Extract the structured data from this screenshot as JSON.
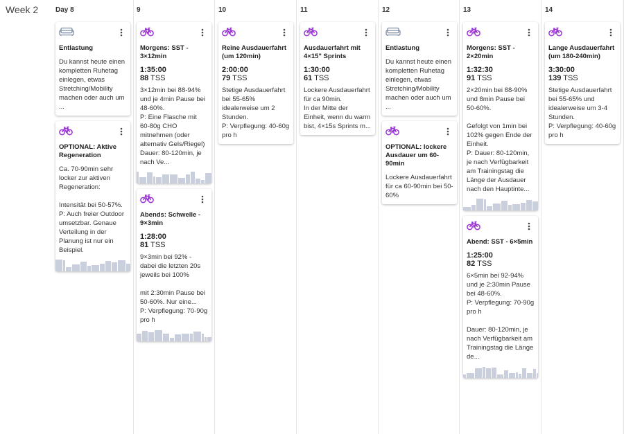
{
  "week_label": "Week 2",
  "days": [
    {
      "label": "Day 8",
      "workouts": [
        {
          "icon": "couch",
          "title": "Entlastung",
          "description": "Du kannst heute einen kompletten Ruhetag einlegen, etwas Stretching/Mobility machen oder auch um ..."
        },
        {
          "icon": "bike",
          "title": "OPTIONAL: Aktive Regeneration",
          "description": "Ca. 70-90min sehr locker zur aktiven Regeneration:\n\nIntensität bei 50-57%.\nP: Auch freier Outdoor umsetzbar. Genaue Verteilung in der Planung ist nur ein Beispiel.",
          "power_profile": true
        }
      ]
    },
    {
      "label": "9",
      "workouts": [
        {
          "icon": "bike",
          "title": "Morgens: SST - 3×12min",
          "duration": "1:35:00",
          "tss": 88,
          "tss_unit": "TSS",
          "description": "3×12min bei 88-94% und je 4min Pause bei 48-60%.\nP: Eine Flasche mit 60-80g CHO mitnehmen (oder alternativ Gels/Riegel)\nDauer: 80-120min, je nach Ve...",
          "power_profile": true
        },
        {
          "icon": "bike",
          "title": "Abends: Schwelle - 9×3min",
          "duration": "1:28:00",
          "tss": 81,
          "tss_unit": "TSS",
          "description": "9×3min bei 92% - dabei die letzten 20s jeweils bei 100%\n\nmit 2:30min Pause bei 50-60%. Nur eine...\nP: Verpflegung: 70-90g pro h",
          "power_profile": true
        }
      ]
    },
    {
      "label": "10",
      "workouts": [
        {
          "icon": "bike",
          "title": "Reine Ausdauerfahrt (um 120min)",
          "duration": "2:00:00",
          "tss": 79,
          "tss_unit": "TSS",
          "description": "Stetige Ausdauerfahrt bei 55-65% idealerweise um 2 Stunden.\nP: Verpflegung: 40-60g pro h"
        }
      ]
    },
    {
      "label": "11",
      "workouts": [
        {
          "icon": "bike",
          "title": "Ausdauerfahrt mit 4×15\" Sprints",
          "duration": "1:30:00",
          "tss": 61,
          "tss_unit": "TSS",
          "description": "Lockere Ausdauerfahrt für ca 90min.\nIn der Mitte der Einheit, wenn du warm bist, 4×15s Sprints m..."
        }
      ]
    },
    {
      "label": "12",
      "workouts": [
        {
          "icon": "couch",
          "title": "Entlastung",
          "description": "Du kannst heute einen kompletten Ruhetag einlegen, etwas Stretching/Mobility machen oder auch um ..."
        },
        {
          "icon": "bike",
          "title": "OPTIONAL: lockere Ausdauer um 60-90min",
          "description": "Lockere Ausdauerfahrt für ca 60-90min bei 50-60%"
        }
      ]
    },
    {
      "label": "13",
      "workouts": [
        {
          "icon": "bike",
          "title": "Morgens: SST - 2×20min",
          "duration": "1:32:30",
          "tss": 91,
          "tss_unit": "TSS",
          "description": "2×20min bei 88-90% und 8min Pause bei 50-60%.\n\nGefolgt von 1min bei 102% gegen Ende der Einheit.\nP: Dauer: 80-120min, je nach Verfügbarkeit am Trainingstag die Länge der Ausdauer nach den Hauptinte...",
          "power_profile": true
        },
        {
          "icon": "bike",
          "title": "Abend: SST - 6×5min",
          "duration": "1:25:00",
          "tss": 82,
          "tss_unit": "TSS",
          "description": "6×5min bei 92-94% und je 2:30min Pause bei 48-60%.\nP: Verpflegung: 70-90g pro h\n\nDauer: 80-120min, je nach Verfügbarkeit am Trainingstag die Länge de...",
          "power_profile": true
        }
      ]
    },
    {
      "label": "14",
      "workouts": [
        {
          "icon": "bike",
          "title": "Lange Ausdauerfahrt (um 180-240min)",
          "duration": "3:30:00",
          "tss": 139,
          "tss_unit": "TSS",
          "description": "Stetige Ausdauerfahrt bei 55-65% und idealerweise um 3-4 Stunden.\nP: Verpflegung: 40-60g pro h"
        }
      ]
    }
  ]
}
